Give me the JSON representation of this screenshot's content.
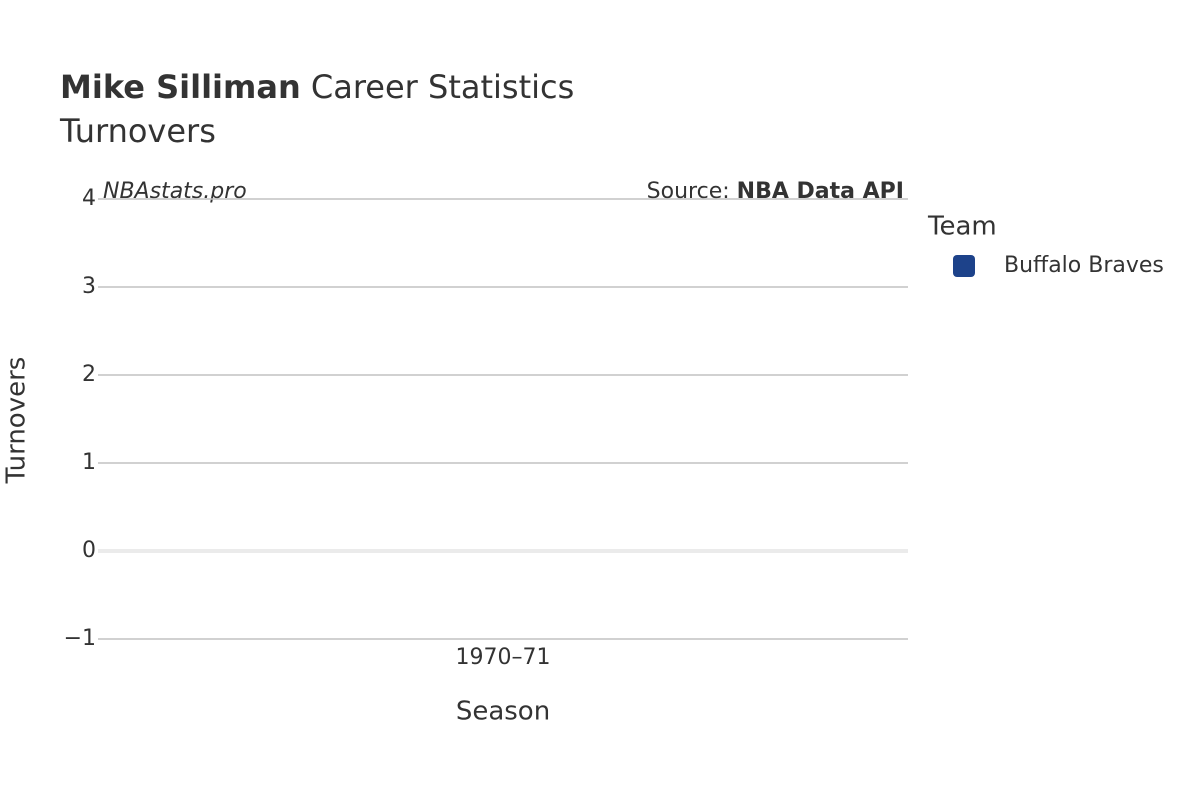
{
  "chart_data": {
    "type": "bar",
    "title_bold": "Mike Silliman",
    "title": "Career Statistics",
    "subtitle": "Turnovers",
    "watermark": "NBAstats.pro",
    "source_label": "Source:",
    "source": "NBA Data API",
    "x_label": "Season",
    "y_label": "Turnovers",
    "legend_title": "Team",
    "categories": [
      "1970–71"
    ],
    "series": [
      {
        "name": "Buffalo Braves",
        "color": "#1d428a",
        "values": [
          0
        ]
      }
    ],
    "ylim": [
      -1,
      4
    ],
    "yticks": [
      {
        "value": -1,
        "label": "−1"
      },
      0,
      1,
      2,
      3,
      4
    ],
    "grid": true
  }
}
